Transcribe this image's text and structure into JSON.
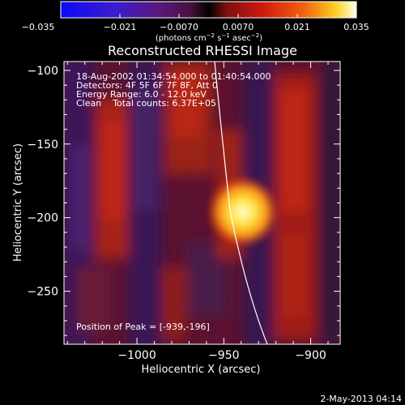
{
  "colorbar": {
    "ticks": [
      "−0.035",
      "−0.021",
      "−0.0070",
      "0.0070",
      "0.021",
      "0.035"
    ],
    "units_main": "(photons cm",
    "units_sup1": "−2",
    "units_mid": " s",
    "units_sup2": "−1",
    "units_mid2": " asec",
    "units_sup3": "−2",
    "units_end": ")"
  },
  "title": "Reconstructed RHESSI Image",
  "info": {
    "line1": "18-Aug-2002 01:34:54.000 to 01:40:54.000",
    "line2": "Detectors: 4F 5F 6F 7F 8F, Att 0",
    "line3": "Energy Range: 6.0 - 12.0 keV",
    "line4": "Clean    Total counts: 6.37E+05"
  },
  "peak_label": "Position of Peak = [-939,-196]",
  "axes": {
    "xlabel": "Heliocentric X (arcsec)",
    "ylabel": "Heliocentric Y (arcsec)",
    "xticks": [
      {
        "label": "−1000",
        "value": -1000
      },
      {
        "label": "−950",
        "value": -950
      },
      {
        "label": "−900",
        "value": -900
      }
    ],
    "yticks": [
      {
        "label": "−100",
        "value": -100
      },
      {
        "label": "−150",
        "value": -150
      },
      {
        "label": "−200",
        "value": -200
      },
      {
        "label": "−250",
        "value": -250
      }
    ],
    "xrange": [
      -1042,
      -883
    ],
    "yrange": [
      -286,
      -94
    ]
  },
  "peak": {
    "x": -939,
    "y": -196
  },
  "timestamp": "2-May-2013 04:14",
  "colors": {
    "limb": "#ffffff",
    "background": "#000000"
  }
}
